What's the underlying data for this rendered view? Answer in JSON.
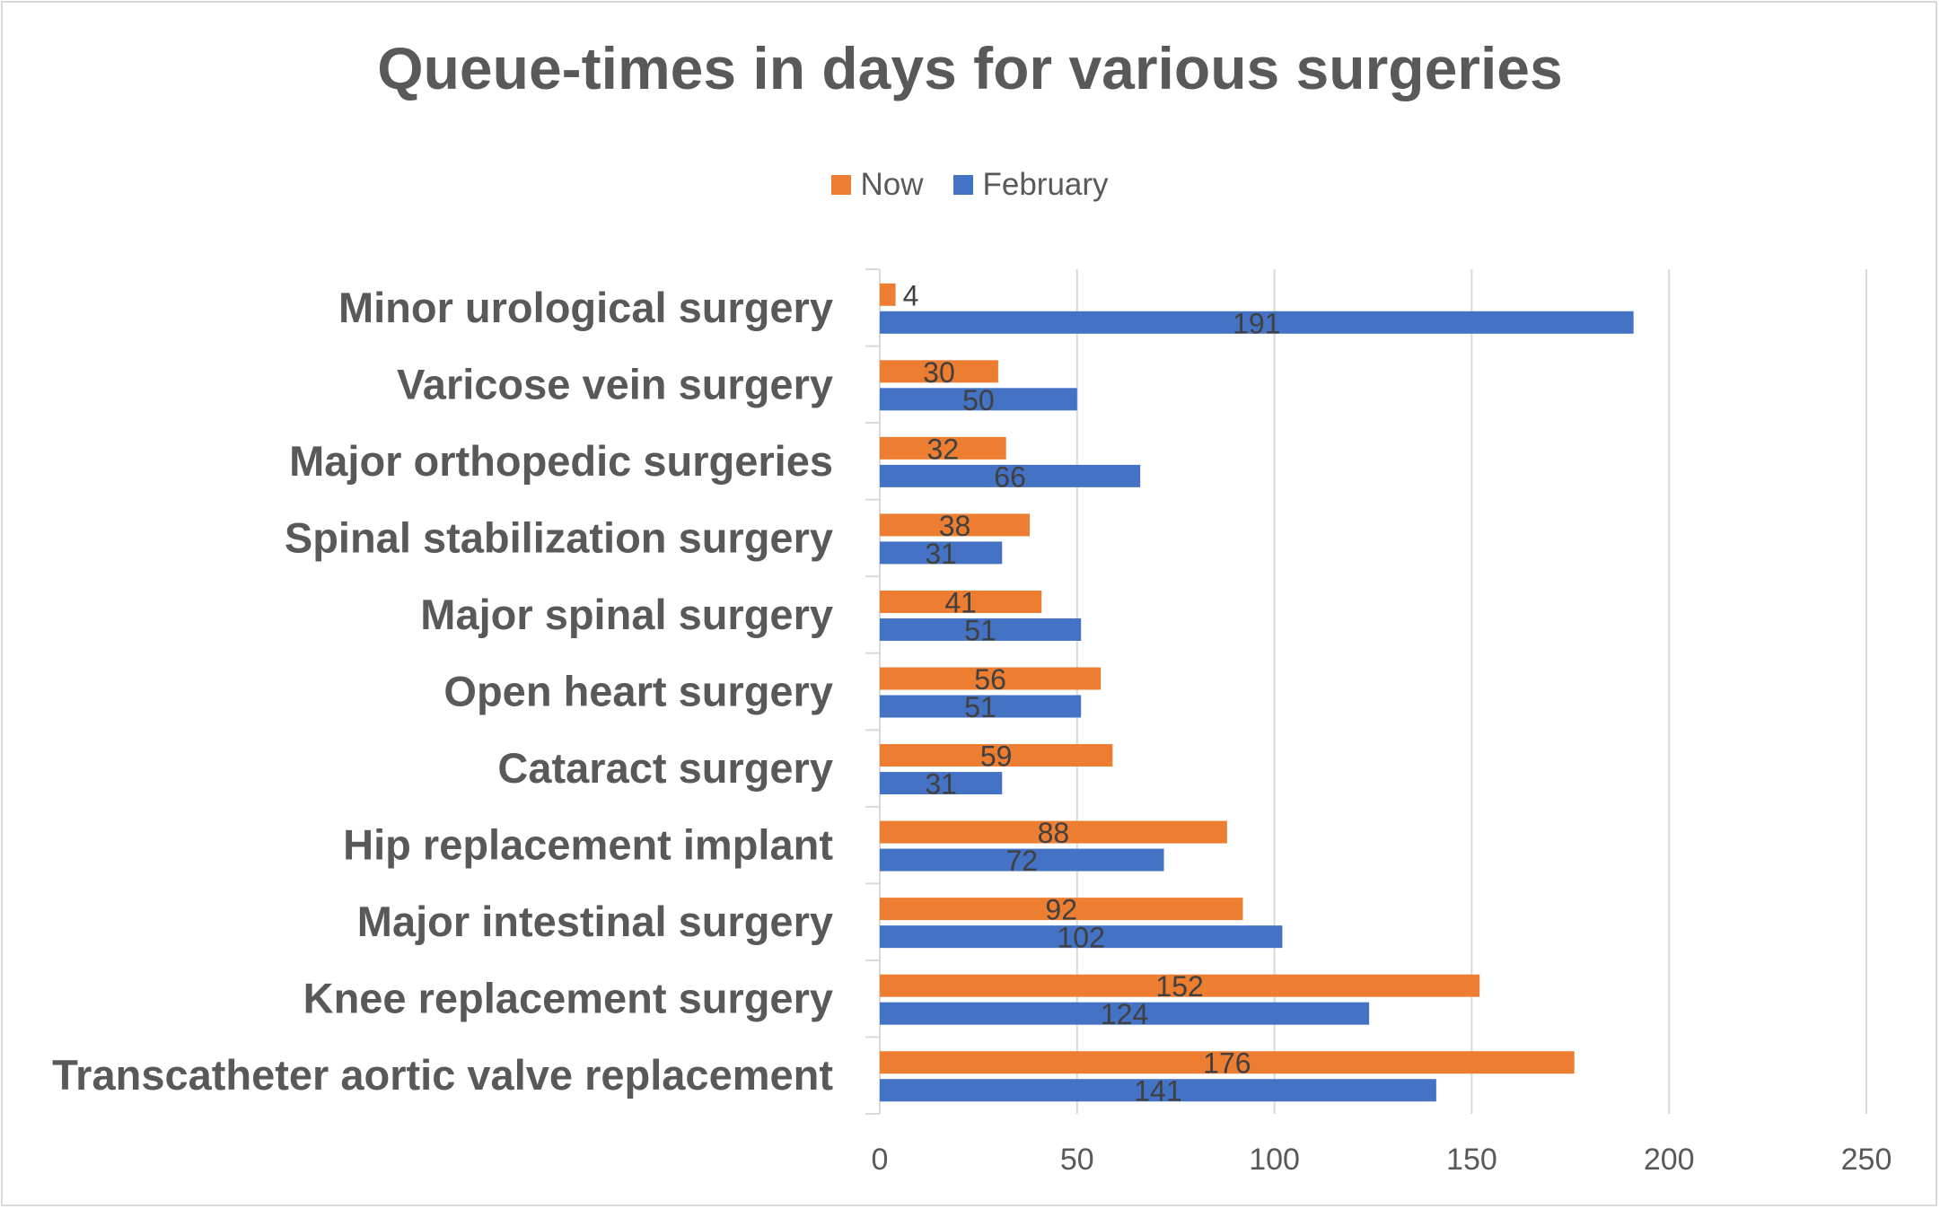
{
  "chart_data": {
    "type": "bar",
    "orientation": "horizontal",
    "title": "Queue-times in days for various surgeries",
    "categories": [
      "Minor urological surgery",
      "Varicose vein surgery",
      "Major orthopedic surgeries",
      "Spinal stabilization surgery",
      "Major spinal surgery",
      "Open heart surgery",
      "Cataract surgery",
      "Hip replacement implant",
      "Major intestinal surgery",
      "Knee replacement surgery",
      "Transcatheter aortic valve replacement"
    ],
    "series": [
      {
        "name": "Now",
        "color": "#ed7d31",
        "values": [
          4,
          30,
          32,
          38,
          41,
          56,
          59,
          88,
          92,
          152,
          176
        ]
      },
      {
        "name": "February",
        "color": "#4472c4",
        "values": [
          191,
          50,
          66,
          31,
          51,
          51,
          31,
          72,
          102,
          124,
          141
        ]
      }
    ],
    "xlim": [
      0,
      250
    ],
    "xticks": [
      "0",
      "50",
      "100",
      "150",
      "200",
      "250"
    ],
    "grid": "vertical",
    "legend_position": "top",
    "data_labels": true
  }
}
